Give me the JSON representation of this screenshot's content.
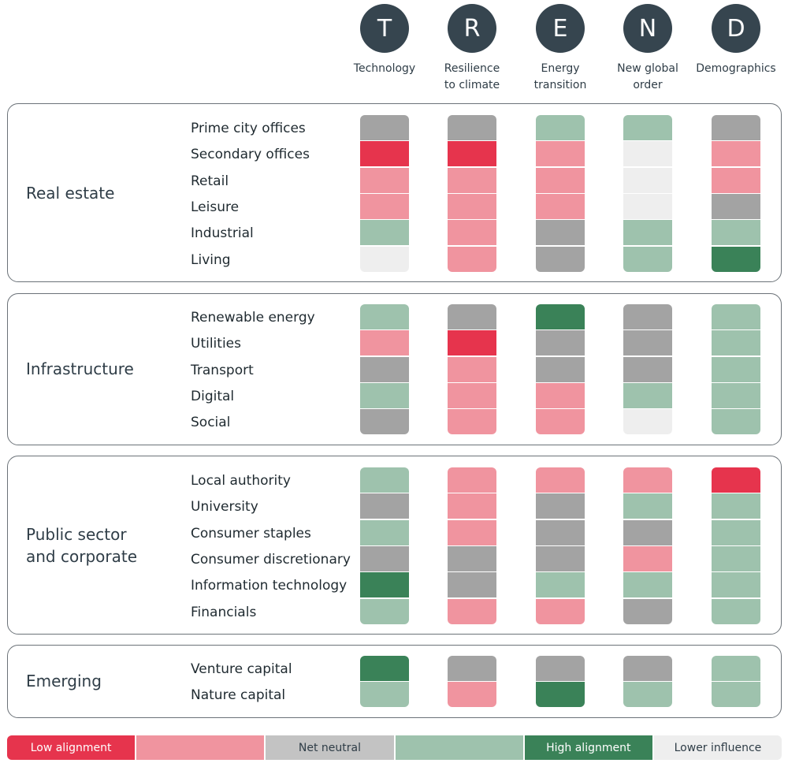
{
  "chart_data": {
    "type": "heatmap",
    "title": "",
    "columns": [
      {
        "letter": "T",
        "label": "Technology"
      },
      {
        "letter": "R",
        "label": "Resilience\nto climate"
      },
      {
        "letter": "E",
        "label": "Energy\ntransition"
      },
      {
        "letter": "N",
        "label": "New global\norder"
      },
      {
        "letter": "D",
        "label": "Demographics"
      }
    ],
    "scale": {
      "L": {
        "label": "Low alignment",
        "color": "#e6344d",
        "text_color": "#ffffff"
      },
      "ML": {
        "label": "",
        "color": "#f0949f",
        "text_color": "#ffffff"
      },
      "N": {
        "label": "Net neutral",
        "color": "#c3c3c3",
        "cell_color": "#a3a3a3",
        "text_color": "#2f3d47"
      },
      "MH": {
        "label": "",
        "color": "#9ec2ad",
        "text_color": "#ffffff"
      },
      "H": {
        "label": "High alignment",
        "color": "#3a8258",
        "text_color": "#ffffff"
      },
      "I": {
        "label": "Lower influence",
        "color": "#eeeeee",
        "text_color": "#2f3d47"
      }
    },
    "legend_order": [
      "L",
      "ML",
      "N",
      "MH",
      "H",
      "I"
    ],
    "sections": [
      {
        "title": "Real estate",
        "rows": [
          {
            "label": "Prime city offices",
            "values": [
              "N",
              "N",
              "MH",
              "MH",
              "N"
            ]
          },
          {
            "label": "Secondary offices",
            "values": [
              "L",
              "L",
              "ML",
              "I",
              "ML"
            ]
          },
          {
            "label": "Retail",
            "values": [
              "ML",
              "ML",
              "ML",
              "I",
              "ML"
            ]
          },
          {
            "label": "Leisure",
            "values": [
              "ML",
              "ML",
              "ML",
              "I",
              "N"
            ]
          },
          {
            "label": "Industrial",
            "values": [
              "MH",
              "ML",
              "N",
              "MH",
              "MH"
            ]
          },
          {
            "label": "Living",
            "values": [
              "I",
              "ML",
              "N",
              "MH",
              "H"
            ]
          }
        ]
      },
      {
        "title": "Infrastructure",
        "rows": [
          {
            "label": "Renewable energy",
            "values": [
              "MH",
              "N",
              "H",
              "N",
              "MH"
            ]
          },
          {
            "label": "Utilities",
            "values": [
              "ML",
              "L",
              "N",
              "N",
              "MH"
            ]
          },
          {
            "label": "Transport",
            "values": [
              "N",
              "ML",
              "N",
              "N",
              "MH"
            ]
          },
          {
            "label": "Digital",
            "values": [
              "MH",
              "ML",
              "ML",
              "MH",
              "MH"
            ]
          },
          {
            "label": "Social",
            "values": [
              "N",
              "ML",
              "ML",
              "I",
              "MH"
            ]
          }
        ]
      },
      {
        "title": "Public sector\nand corporate",
        "rows": [
          {
            "label": "Local authority",
            "values": [
              "MH",
              "ML",
              "ML",
              "ML",
              "L"
            ]
          },
          {
            "label": "University",
            "values": [
              "N",
              "ML",
              "N",
              "MH",
              "MH"
            ]
          },
          {
            "label": "Consumer staples",
            "values": [
              "MH",
              "ML",
              "N",
              "N",
              "MH"
            ]
          },
          {
            "label": "Consumer discretionary",
            "values": [
              "N",
              "N",
              "N",
              "ML",
              "MH"
            ]
          },
          {
            "label": "Information technology",
            "values": [
              "H",
              "N",
              "MH",
              "MH",
              "MH"
            ]
          },
          {
            "label": "Financials",
            "values": [
              "MH",
              "ML",
              "ML",
              "N",
              "MH"
            ]
          }
        ]
      },
      {
        "title": "Emerging",
        "rows": [
          {
            "label": "Venture capital",
            "values": [
              "H",
              "N",
              "N",
              "N",
              "MH"
            ]
          },
          {
            "label": "Nature capital",
            "values": [
              "MH",
              "ML",
              "H",
              "MH",
              "MH"
            ]
          }
        ]
      }
    ]
  }
}
